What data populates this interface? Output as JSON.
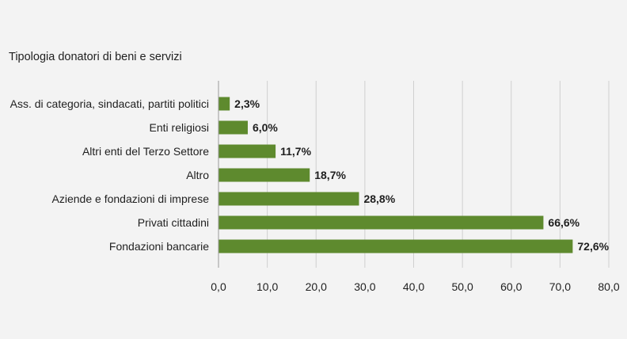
{
  "chart_data": {
    "type": "bar",
    "orientation": "horizontal",
    "title": "Tipologia donatori di beni e servizi",
    "xlabel": "",
    "ylabel": "",
    "categories": [
      "Ass. di categoria, sindacati, partiti politici",
      "Enti religiosi",
      "Altri enti del Terzo Settore",
      "Altro",
      "Aziende e fondazioni di imprese",
      "Privati cittadini",
      "Fondazioni bancarie"
    ],
    "values": [
      2.3,
      6.0,
      11.7,
      18.7,
      28.8,
      66.6,
      72.6
    ],
    "data_labels": [
      "2,3%",
      "6,0%",
      "11,7%",
      "18,7%",
      "28,8%",
      "66,6%",
      "72,6%"
    ],
    "xlim": [
      0,
      80
    ],
    "x_ticks": [
      0,
      10,
      20,
      30,
      40,
      50,
      60,
      70,
      80
    ],
    "x_tick_labels": [
      "0,0",
      "10,0",
      "20,0",
      "30,0",
      "40,0",
      "50,0",
      "60,0",
      "70,0",
      "80,0"
    ],
    "grid": true,
    "legend": "none",
    "colors": {
      "bar": "#5e8a2e",
      "grid": "#cfcfcf",
      "axis": "#9a9a9a",
      "text": "#1f1f1f",
      "background": "#f3f3f3"
    }
  }
}
